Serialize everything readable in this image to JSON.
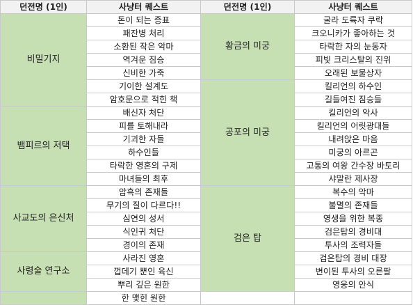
{
  "headers": {
    "dungeon": "던전명 (1인)",
    "quest": "사냥터 퀘스트"
  },
  "left": [
    {
      "dungeon": "비밀기지",
      "quests": [
        "돈이 되는 증표",
        "패잔병 처리",
        "소환된 작은 악마",
        "역겨운 짐승",
        "신비한 가죽",
        "기이한 설계도",
        "암호문으로 적힌 책"
      ]
    },
    {
      "dungeon": "뱀피르의 저택",
      "quests": [
        "배신자 처단",
        "피를 토해내라",
        "기괴한 자들",
        "하수인들",
        "타락한 영혼의 구제",
        "마녀들의 최후"
      ]
    },
    {
      "dungeon": "사교도의 은신처",
      "quests": [
        "암흑의 존재들",
        "무기의 질이 다르다!!",
        "심연의 성서",
        "식인귀 처단",
        "경이의 존재"
      ]
    },
    {
      "dungeon": "사령술 연구소",
      "quests": [
        "사라진 영혼",
        "껍데기 뿐인 육신",
        "뿌리 깊은 원한",
        "한 맺힌 원한"
      ]
    }
  ],
  "right": [
    {
      "dungeon": "황금의 미궁",
      "quests": [
        "굴라 도륙자 쿠락",
        "크오니카가 좋아하는 것",
        "타락한 자의 눈동자",
        "피빛 크리스탈의 진위",
        "오래된 보물상자"
      ]
    },
    {
      "dungeon": "공포의 미궁",
      "quests": [
        "킬리언의 하수인",
        "길들여진 짐승들",
        "킬리언의 악사",
        "킬리언의 어릿광대들",
        "내려앉은 마음",
        "미궁의 아르곤",
        "고통의 여왕 간수장 바토리",
        "샤말란 제사장"
      ]
    },
    {
      "dungeon": "검은 탑",
      "quests": [
        "복수의 악마",
        "불멸의 존재들",
        "영생을 위한 복종",
        "검은탑의 경비대",
        "투사의 조력자들",
        "검은탑의 경비 대장",
        "변이된 투사의 오른팔",
        "영웅의 안식"
      ]
    }
  ]
}
